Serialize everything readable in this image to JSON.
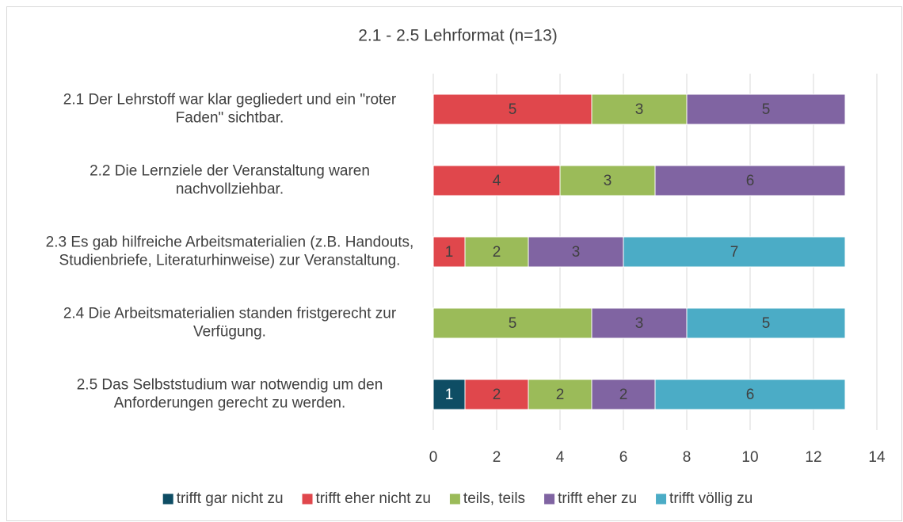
{
  "chart_data": {
    "type": "stacked_bar_horizontal",
    "title": "2.1 - 2.5 Lehrformat (n=13)",
    "categories": [
      "2.1 Der Lehrstoff war klar gegliedert und ein \"roter Faden\" sichtbar.",
      "2.2 Die Lernziele der Veranstaltung waren nachvollziehbar.",
      "2.3 Es gab hilfreiche Arbeitsmaterialien (z.B. Handouts, Studienbriefe, Literaturhinweise) zur Veranstaltung.",
      "2.4 Die Arbeitsmaterialien standen fristgerecht zur Verfügung.",
      "2.5 Das Selbststudium war notwendig um den Anforderungen gerecht zu werden."
    ],
    "series": [
      {
        "name": "trifft gar nicht zu",
        "color": "#0e4d64",
        "values": [
          0,
          0,
          0,
          0,
          1
        ]
      },
      {
        "name": "trifft eher nicht zu",
        "color": "#e0474c",
        "values": [
          5,
          4,
          1,
          0,
          2
        ]
      },
      {
        "name": "teils, teils",
        "color": "#9bbb59",
        "values": [
          3,
          3,
          2,
          5,
          2
        ]
      },
      {
        "name": "trifft eher zu",
        "color": "#8064a2",
        "values": [
          5,
          6,
          3,
          3,
          2
        ]
      },
      {
        "name": "trifft völlig zu",
        "color": "#4bacc6",
        "values": [
          0,
          0,
          7,
          5,
          6
        ]
      }
    ],
    "xlim": [
      0,
      14
    ],
    "xticks": [
      0,
      2,
      4,
      6,
      8,
      10,
      12,
      14
    ],
    "grid": true,
    "legend": "bottom"
  }
}
